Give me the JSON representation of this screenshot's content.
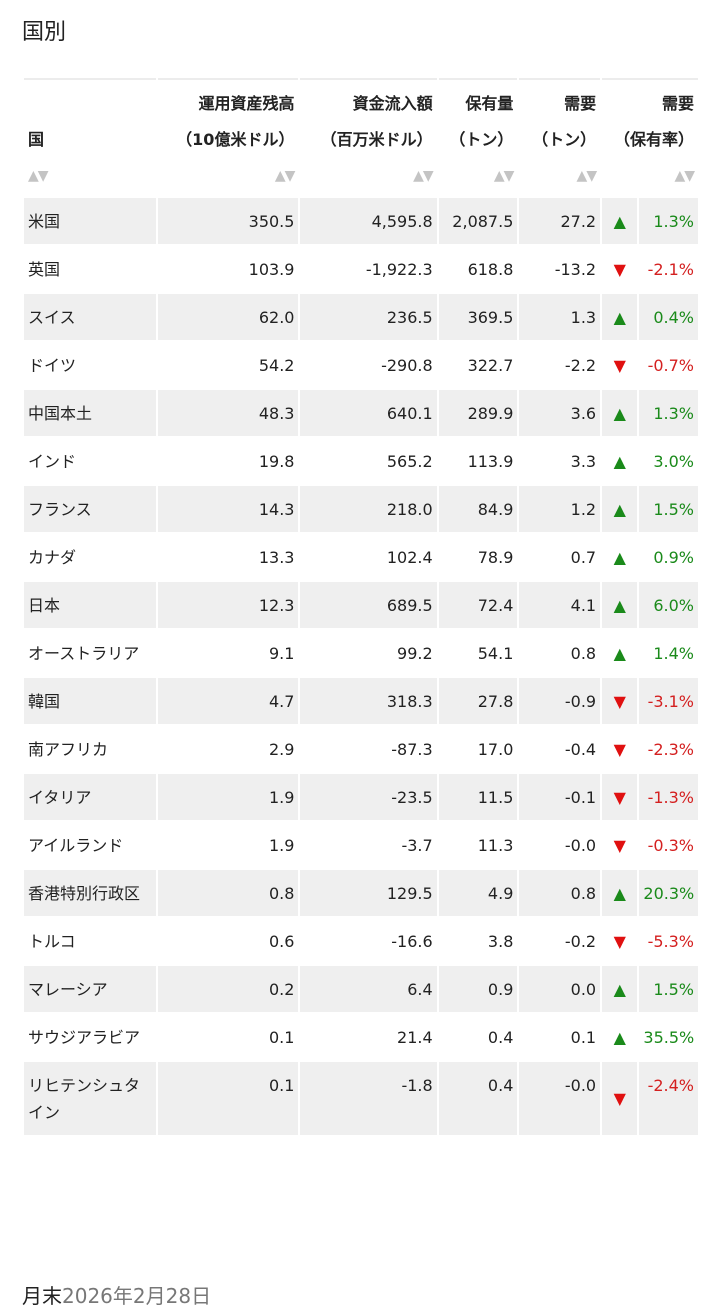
{
  "title": "国別",
  "headers": {
    "country": {
      "l1": "",
      "l2": "国"
    },
    "aum": {
      "l1": "運用資産残高",
      "l2": "（10億米ドル）"
    },
    "flow": {
      "l1": "資金流入額",
      "l2": "（百万米ドル）"
    },
    "holdings": {
      "l1": "保有量",
      "l2": "（トン）"
    },
    "demand": {
      "l1": "需要",
      "l2": "（トン）"
    },
    "demand_pct": {
      "l1": "需要",
      "l2": "（保有率）"
    },
    "sort_glyph": "▲▼"
  },
  "colors": {
    "up": "#1a8a1a",
    "down": "#e01010",
    "shade": "#efefef"
  },
  "rows": [
    {
      "country": "米国",
      "aum": "350.5",
      "flow": "4,595.8",
      "holdings": "2,087.5",
      "demand": "27.2",
      "dir": "up",
      "arrow": "▲",
      "pct": "1.3%",
      "shade": true
    },
    {
      "country": "英国",
      "aum": "103.9",
      "flow": "-1,922.3",
      "holdings": "618.8",
      "demand": "-13.2",
      "dir": "down",
      "arrow": "▼",
      "pct": "-2.1%",
      "shade": false
    },
    {
      "country": "スイス",
      "aum": "62.0",
      "flow": "236.5",
      "holdings": "369.5",
      "demand": "1.3",
      "dir": "up",
      "arrow": "▲",
      "pct": "0.4%",
      "shade": true
    },
    {
      "country": "ドイツ",
      "aum": "54.2",
      "flow": "-290.8",
      "holdings": "322.7",
      "demand": "-2.2",
      "dir": "down",
      "arrow": "▼",
      "pct": "-0.7%",
      "shade": false
    },
    {
      "country": "中国本土",
      "aum": "48.3",
      "flow": "640.1",
      "holdings": "289.9",
      "demand": "3.6",
      "dir": "up",
      "arrow": "▲",
      "pct": "1.3%",
      "shade": true
    },
    {
      "country": "インド",
      "aum": "19.8",
      "flow": "565.2",
      "holdings": "113.9",
      "demand": "3.3",
      "dir": "up",
      "arrow": "▲",
      "pct": "3.0%",
      "shade": false
    },
    {
      "country": "フランス",
      "aum": "14.3",
      "flow": "218.0",
      "holdings": "84.9",
      "demand": "1.2",
      "dir": "up",
      "arrow": "▲",
      "pct": "1.5%",
      "shade": true
    },
    {
      "country": "カナダ",
      "aum": "13.3",
      "flow": "102.4",
      "holdings": "78.9",
      "demand": "0.7",
      "dir": "up",
      "arrow": "▲",
      "pct": "0.9%",
      "shade": false
    },
    {
      "country": "日本",
      "aum": "12.3",
      "flow": "689.5",
      "holdings": "72.4",
      "demand": "4.1",
      "dir": "up",
      "arrow": "▲",
      "pct": "6.0%",
      "shade": true
    },
    {
      "country": "オーストラリア",
      "aum": "9.1",
      "flow": "99.2",
      "holdings": "54.1",
      "demand": "0.8",
      "dir": "up",
      "arrow": "▲",
      "pct": "1.4%",
      "shade": false
    },
    {
      "country": "韓国",
      "aum": "4.7",
      "flow": "318.3",
      "holdings": "27.8",
      "demand": "-0.9",
      "dir": "down",
      "arrow": "▼",
      "pct": "-3.1%",
      "shade": true
    },
    {
      "country": "南アフリカ",
      "aum": "2.9",
      "flow": "-87.3",
      "holdings": "17.0",
      "demand": "-0.4",
      "dir": "down",
      "arrow": "▼",
      "pct": "-2.3%",
      "shade": false
    },
    {
      "country": "イタリア",
      "aum": "1.9",
      "flow": "-23.5",
      "holdings": "11.5",
      "demand": "-0.1",
      "dir": "down",
      "arrow": "▼",
      "pct": "-1.3%",
      "shade": true
    },
    {
      "country": "アイルランド",
      "aum": "1.9",
      "flow": "-3.7",
      "holdings": "11.3",
      "demand": "-0.0",
      "dir": "down",
      "arrow": "▼",
      "pct": "-0.3%",
      "shade": false
    },
    {
      "country": "香港特別行政区",
      "aum": "0.8",
      "flow": "129.5",
      "holdings": "4.9",
      "demand": "0.8",
      "dir": "up",
      "arrow": "▲",
      "pct": "20.3%",
      "shade": true
    },
    {
      "country": "トルコ",
      "aum": "0.6",
      "flow": "-16.6",
      "holdings": "3.8",
      "demand": "-0.2",
      "dir": "down",
      "arrow": "▼",
      "pct": "-5.3%",
      "shade": false
    },
    {
      "country": "マレーシア",
      "aum": "0.2",
      "flow": "6.4",
      "holdings": "0.9",
      "demand": "0.0",
      "dir": "up",
      "arrow": "▲",
      "pct": "1.5%",
      "shade": true
    },
    {
      "country": "サウジアラビア",
      "aum": "0.1",
      "flow": "21.4",
      "holdings": "0.4",
      "demand": "0.1",
      "dir": "up",
      "arrow": "▲",
      "pct": "35.5%",
      "shade": false
    },
    {
      "country": "リヒテンシュタイン",
      "aum": "0.1",
      "flow": "-1.8",
      "holdings": "0.4",
      "demand": "-0.0",
      "dir": "down",
      "arrow": "▼",
      "pct": "-2.4%",
      "shade": true
    }
  ],
  "footer": {
    "label": "月末",
    "date": "2026年2月28日"
  }
}
